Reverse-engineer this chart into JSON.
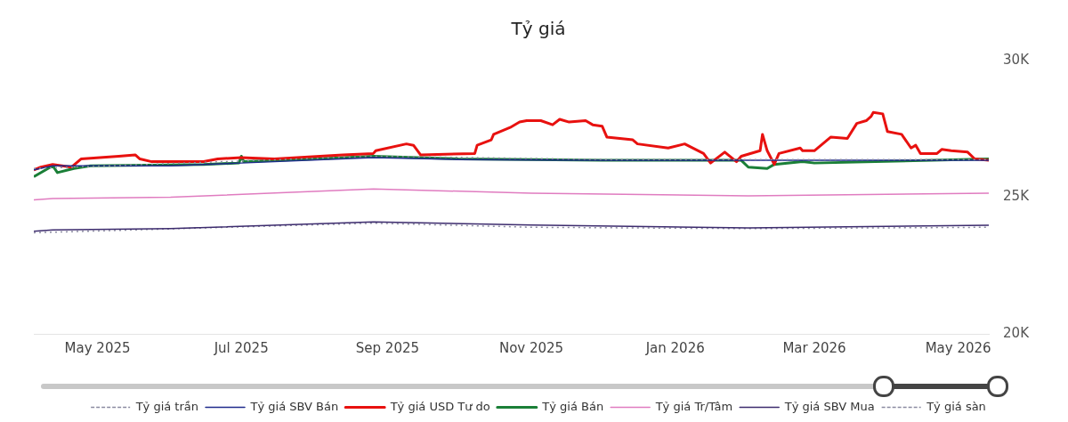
{
  "chart_data": {
    "type": "line",
    "title": "Tỷ giá",
    "xlim": [
      "2025-04-04",
      "2026-05-14"
    ],
    "xticks": [
      {
        "value": "2025-05-01",
        "label": "May 2025"
      },
      {
        "value": "2025-07-01",
        "label": "Jul 2025"
      },
      {
        "value": "2025-09-01",
        "label": "Sep 2025"
      },
      {
        "value": "2025-11-01",
        "label": "Nov 2025"
      },
      {
        "value": "2026-01-01",
        "label": "Jan 2026"
      },
      {
        "value": "2026-03-01",
        "label": "Mar 2026"
      },
      {
        "value": "2026-05-01",
        "label": "May 2026"
      }
    ],
    "ylim": [
      20000,
      30000
    ],
    "yticks": [
      {
        "value": 20000,
        "label": "20K"
      },
      {
        "value": 25000,
        "label": "25K"
      },
      {
        "value": 30000,
        "label": "30K"
      }
    ],
    "grid": false,
    "legend": "bottom",
    "marker": "none",
    "series": [
      {
        "name": "Tỷ giá trần",
        "color": "#8a8aa0",
        "line_style": "dotted",
        "x": [
          "2025-04-04",
          "2025-08-26",
          "2025-12-01",
          "2026-05-14"
        ],
        "values": [
          26050,
          26500,
          26380,
          26380
        ]
      },
      {
        "name": "Tỷ giá SBV Bán",
        "color": "#1f2a8c",
        "line_style": "solid",
        "x": [
          "2025-04-04",
          "2025-04-12",
          "2025-06-01",
          "2025-07-01",
          "2025-08-26",
          "2025-10-01",
          "2025-12-01",
          "2026-05-14"
        ],
        "values": [
          26000,
          26150,
          26150,
          26250,
          26450,
          26380,
          26350,
          26350
        ]
      },
      {
        "name": "Tỷ giá USD Tư do",
        "color": "#e8110f",
        "line_style": "solid",
        "x": [
          "2025-04-04",
          "2025-04-07",
          "2025-04-12",
          "2025-04-20",
          "2025-04-24",
          "2025-05-10",
          "2025-05-17",
          "2025-05-19",
          "2025-05-24",
          "2025-06-15",
          "2025-06-21",
          "2025-07-01",
          "2025-07-15",
          "2025-08-13",
          "2025-08-26",
          "2025-08-27",
          "2025-09-09",
          "2025-09-12",
          "2025-09-15",
          "2025-10-08",
          "2025-10-09",
          "2025-10-15",
          "2025-10-16",
          "2025-10-23",
          "2025-10-27",
          "2025-10-30",
          "2025-11-05",
          "2025-11-10",
          "2025-11-13",
          "2025-11-17",
          "2025-11-24",
          "2025-11-27",
          "2025-12-01",
          "2025-12-03",
          "2025-12-14",
          "2025-12-16",
          "2025-12-29",
          "2026-01-05",
          "2026-01-13",
          "2026-01-16",
          "2026-01-22",
          "2026-01-27",
          "2026-01-29",
          "2026-02-06",
          "2026-02-07",
          "2026-02-09",
          "2026-02-12",
          "2026-02-14",
          "2026-02-23",
          "2026-02-24",
          "2026-03-01",
          "2026-03-08",
          "2026-03-15",
          "2026-03-19",
          "2026-03-23",
          "2026-03-25",
          "2026-03-26",
          "2026-03-30",
          "2026-04-01",
          "2026-04-07",
          "2026-04-11",
          "2026-04-13",
          "2026-04-15",
          "2026-04-22",
          "2026-04-24",
          "2026-04-28",
          "2026-05-05",
          "2026-05-08",
          "2026-05-14"
        ],
        "values": [
          26000,
          26100,
          26200,
          26100,
          26400,
          26500,
          26550,
          26400,
          26300,
          26300,
          26400,
          26450,
          26400,
          26550,
          26600,
          26700,
          26950,
          26900,
          26550,
          26600,
          26900,
          27100,
          27300,
          27550,
          27750,
          27800,
          27800,
          27650,
          27850,
          27750,
          27800,
          27650,
          27600,
          27200,
          27100,
          26950,
          26800,
          26950,
          26600,
          26250,
          26650,
          26300,
          26500,
          26700,
          27300,
          26700,
          26200,
          26600,
          26800,
          26700,
          26700,
          27200,
          27150,
          27700,
          27800,
          27950,
          28100,
          28050,
          27400,
          27300,
          26800,
          26900,
          26600,
          26600,
          26750,
          26700,
          26650,
          26400,
          26350
        ]
      },
      {
        "name": "Tỷ giá Bán",
        "color": "#1a7f37",
        "line_style": "solid",
        "x": [
          "2025-04-04",
          "2025-04-12",
          "2025-04-14",
          "2025-04-21",
          "2025-04-28",
          "2025-06-15",
          "2025-06-30",
          "2025-07-01",
          "2025-07-02",
          "2025-08-01",
          "2025-08-26",
          "2025-10-01",
          "2025-12-01",
          "2026-01-29",
          "2026-02-01",
          "2026-02-09",
          "2026-02-12",
          "2026-02-24",
          "2026-03-01",
          "2026-05-14"
        ],
        "values": [
          25750,
          26150,
          25900,
          26050,
          26150,
          26200,
          26250,
          26500,
          26300,
          26400,
          26500,
          26400,
          26350,
          26350,
          26100,
          26050,
          26200,
          26300,
          26250,
          26400
        ]
      },
      {
        "name": "Tỷ giá Tr/Tâm",
        "color": "#e07cc0",
        "line_style": "solid",
        "x": [
          "2025-04-04",
          "2025-04-12",
          "2025-06-01",
          "2025-08-26",
          "2025-11-01",
          "2026-02-01",
          "2026-05-14"
        ],
        "values": [
          24900,
          24950,
          25000,
          25300,
          25150,
          25050,
          25150
        ]
      },
      {
        "name": "Tỷ giá SBV Mua",
        "color": "#3d2c6e",
        "line_style": "solid",
        "x": [
          "2025-04-04",
          "2025-04-12",
          "2025-06-01",
          "2025-08-26",
          "2025-11-01",
          "2026-02-01",
          "2026-05-14"
        ],
        "values": [
          23750,
          23800,
          23850,
          24100,
          23980,
          23880,
          23970
        ]
      },
      {
        "name": "Tỷ giá sàn",
        "color": "#8a8aa0",
        "line_style": "dotted",
        "x": [
          "2025-04-04",
          "2025-08-26",
          "2025-11-01",
          "2026-02-01",
          "2026-05-14"
        ],
        "values": [
          23700,
          24050,
          23900,
          23850,
          23900
        ]
      }
    ]
  }
}
